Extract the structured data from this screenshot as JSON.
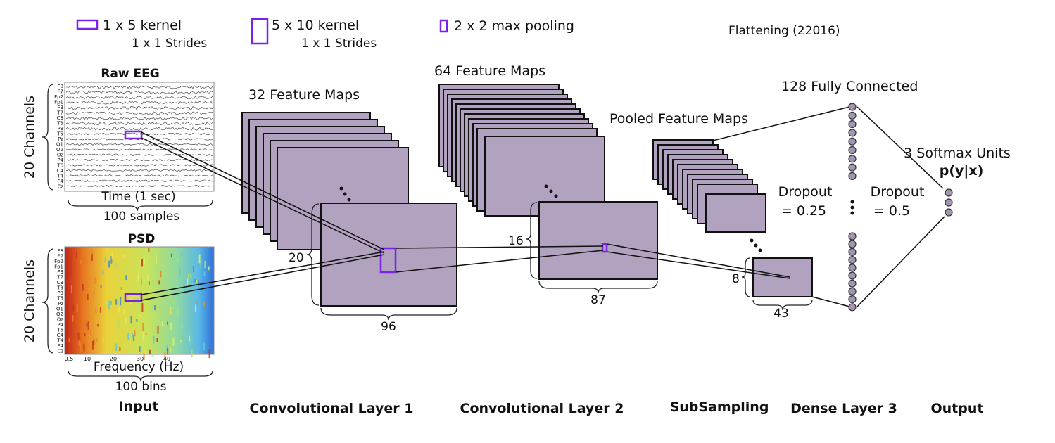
{
  "legend": {
    "kernel_1x5": "1 x 5 kernel",
    "kernel_1x5_strides": "1 x 1 Strides",
    "kernel_5x10": "5 x 10 kernel",
    "kernel_5x10_strides": "1 x 1 Strides",
    "pooling": "2 x 2 max pooling",
    "flattening": "Flattening (22016)"
  },
  "input": {
    "raw_eeg_title": "Raw EEG",
    "raw_eeg_ylabel": "20 Channels",
    "raw_eeg_xlabel": "Time (1 sec)",
    "raw_eeg_samples": "100 samples",
    "psd_title": "PSD",
    "psd_ylabel": "20 Channels",
    "psd_xlabel": "Frequency (Hz)",
    "psd_bins": "100 bins",
    "psd_ticks": [
      "0.5",
      "10",
      "20",
      "30",
      "40"
    ],
    "channels": [
      "F8",
      "F7",
      "Fp2",
      "Fp1",
      "F3",
      "T7",
      "C3",
      "T3",
      "P3",
      "T5",
      "Pz",
      "O1",
      "O2",
      "Oz",
      "P4",
      "T6",
      "C4",
      "T4",
      "F4",
      "Cz"
    ]
  },
  "conv1": {
    "title": "32 Feature Maps",
    "height_label": "20",
    "width_label": "96"
  },
  "conv2": {
    "title": "64 Feature Maps",
    "height_label": "16",
    "width_label": "87"
  },
  "subsampling": {
    "title": "Pooled Feature Maps",
    "height_label": "8",
    "width_label": "43",
    "dropout": "Dropout",
    "dropout_value": "= 0.25"
  },
  "dense": {
    "title": "128 Fully Connected",
    "dropout": "Dropout",
    "dropout_value": "= 0.5"
  },
  "output": {
    "title": "3 Softmax Units",
    "formula": "p(y|x)"
  },
  "bottom_labels": {
    "input": "Input",
    "conv1": "Convolutional Layer 1",
    "conv2": "Convolutional Layer 2",
    "subsampling": "SubSampling",
    "dense": "Dense Layer 3",
    "output": "Output"
  },
  "colors": {
    "feature_map": "#b1a3bf",
    "kernel": "#7a22e8",
    "neuron": "#a493b3"
  }
}
